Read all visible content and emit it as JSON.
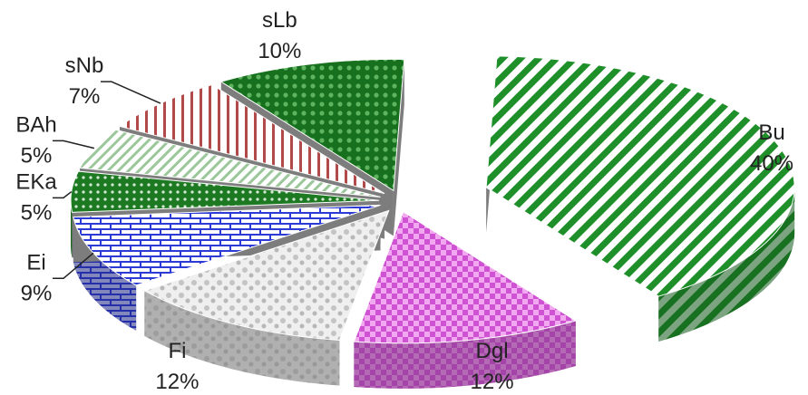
{
  "chart_data": {
    "type": "pie",
    "title": "",
    "style": "3d-exploded",
    "categories": [
      "Bu",
      "Dgl",
      "Fi",
      "Ei",
      "EKa",
      "BAh",
      "sNb",
      "sLb"
    ],
    "values": [
      40,
      12,
      12,
      9,
      5,
      5,
      7,
      10
    ],
    "value_labels": [
      "40%",
      "12%",
      "12%",
      "9%",
      "5%",
      "5%",
      "7%",
      "10%"
    ],
    "colors": [
      "#1f8f2a",
      "#d35ad6",
      "#c9c9c9",
      "#2d3bd6",
      "#1d7a22",
      "#d7d7d7",
      "#b24a4a",
      "#16701d"
    ],
    "patterns": [
      "diagonal-stripes",
      "checker",
      "mottled",
      "brick",
      "dotted-band",
      "light-stripes",
      "vertical-stripes",
      "dense-dots"
    ],
    "legend": "none"
  }
}
